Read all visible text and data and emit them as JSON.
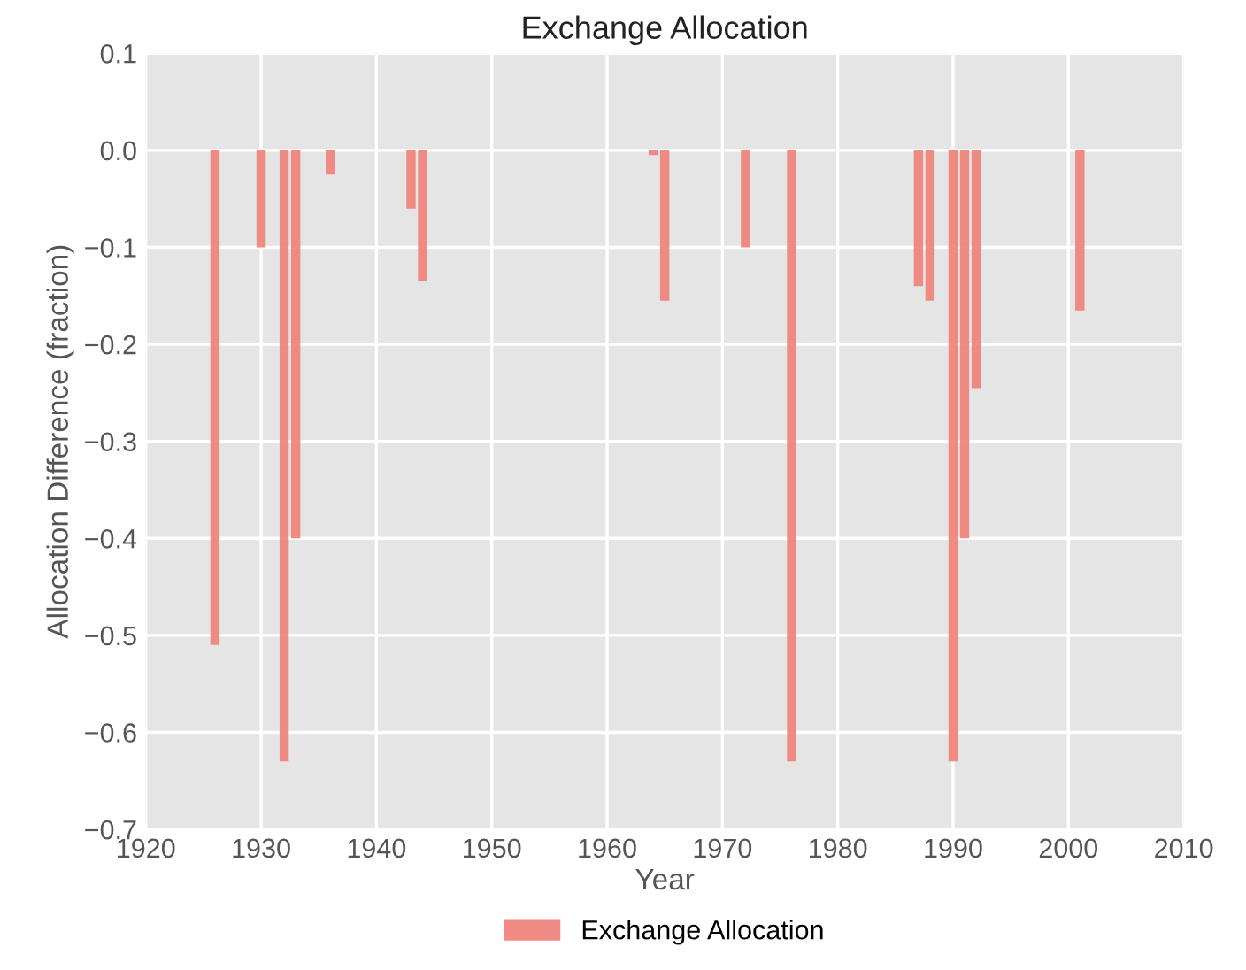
{
  "chart_data": {
    "type": "bar",
    "title": "Exchange Allocation",
    "xlabel": "Year",
    "ylabel": "Allocation Difference (fraction)",
    "x": [
      1926,
      1930,
      1932,
      1933,
      1936,
      1943,
      1944,
      1964,
      1965,
      1972,
      1976,
      1987,
      1988,
      1990,
      1991,
      1992,
      2001
    ],
    "series": [
      {
        "name": "Exchange Allocation",
        "color": "#ef7f78",
        "values": [
          -0.51,
          -0.1,
          -0.63,
          -0.4,
          -0.025,
          -0.06,
          -0.135,
          -0.005,
          -0.155,
          -0.1,
          -0.63,
          -0.14,
          -0.155,
          -0.63,
          -0.4,
          -0.245,
          -0.165
        ]
      }
    ],
    "xlim": [
      1920,
      2010
    ],
    "xticks": [
      1920,
      1930,
      1940,
      1950,
      1960,
      1970,
      1980,
      1990,
      2000,
      2010
    ],
    "ylim": [
      -0.7,
      0.1
    ],
    "yticks": [
      {
        "value": -0.7,
        "label": "−0.7"
      },
      {
        "value": -0.6,
        "label": "−0.6"
      },
      {
        "value": -0.5,
        "label": "−0.5"
      },
      {
        "value": -0.4,
        "label": "−0.4"
      },
      {
        "value": -0.3,
        "label": "−0.3"
      },
      {
        "value": -0.2,
        "label": "−0.2"
      },
      {
        "value": -0.1,
        "label": "−0.1"
      },
      {
        "value": 0.0,
        "label": "0.0"
      },
      {
        "value": 0.1,
        "label": "0.1"
      }
    ],
    "grid": true,
    "legend": "bottom"
  }
}
